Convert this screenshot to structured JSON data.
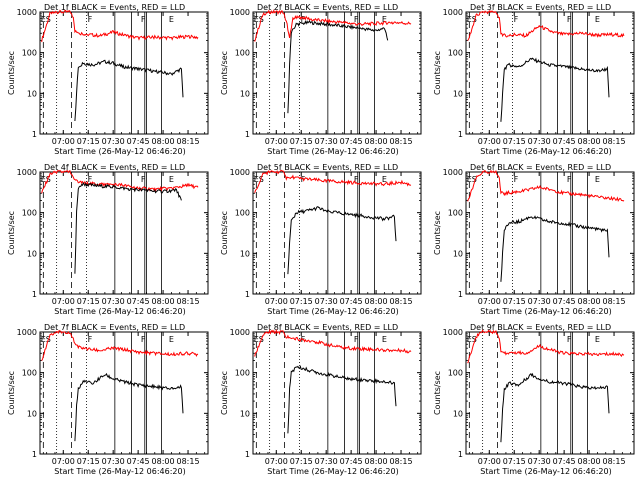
{
  "shared": {
    "ylabel": "Counts/sec",
    "xlabel": "Start Time (26-May-12 06:46:20)",
    "x_ticks": [
      "07:00",
      "07:15",
      "07:30",
      "07:45",
      "08:00",
      "08:15"
    ],
    "y_ticks": [
      "1",
      "10",
      "100",
      "1000"
    ],
    "colors": {
      "events": "#000000",
      "lld": "#ff0000",
      "axes": "#000000"
    }
  },
  "chart_data": [
    {
      "type": "line",
      "title": "Det 1f BLACK = Events, RED = LLD",
      "xlabel": "Start Time (26-May-12 06:46:20)",
      "ylabel": "Counts/sec",
      "x_ticks": [
        "07:00",
        "07:15",
        "07:30",
        "07:45",
        "08:00",
        "08:15"
      ],
      "y_scale": "log",
      "ylim": [
        1,
        1000
      ],
      "marker_letters": [
        "E",
        "S",
        "F",
        "F",
        "E"
      ],
      "series": [
        {
          "color": "#ff0000",
          "x": [
            "06:47",
            "06:52",
            "06:56",
            "07:04",
            "07:06",
            "07:07",
            "07:10",
            "07:15",
            "07:22",
            "07:30",
            "07:38",
            "07:45",
            "07:55",
            "08:05",
            "08:15",
            "08:21"
          ],
          "y": [
            200,
            900,
            1000,
            1000,
            700,
            350,
            300,
            280,
            260,
            320,
            260,
            230,
            240,
            230,
            250,
            240
          ]
        },
        {
          "color": "#000000",
          "x": [
            "07:07",
            "07:08",
            "07:09",
            "07:12",
            "07:18",
            "07:25",
            "07:30",
            "07:36",
            "07:45",
            "07:55",
            "08:05",
            "08:11",
            "08:12"
          ],
          "y": [
            2,
            10,
            45,
            55,
            50,
            60,
            55,
            45,
            40,
            35,
            30,
            40,
            8
          ]
        }
      ]
    },
    {
      "type": "line",
      "title": "Det 2f BLACK = Events, RED = LLD",
      "xlabel": "Start Time (26-May-12 06:46:20)",
      "ylabel": "Counts/sec",
      "x_ticks": [
        "07:00",
        "07:15",
        "07:30",
        "07:45",
        "08:00",
        "08:15"
      ],
      "y_scale": "log",
      "ylim": [
        1,
        1000
      ],
      "marker_letters": [
        "E",
        "S",
        "F",
        "F",
        "E"
      ],
      "series": [
        {
          "color": "#ff0000",
          "x": [
            "06:47",
            "06:52",
            "06:56",
            "07:04",
            "07:06",
            "07:08",
            "07:10",
            "07:15",
            "07:22",
            "07:30",
            "07:40",
            "07:50",
            "08:00",
            "08:10",
            "08:21"
          ],
          "y": [
            200,
            900,
            1000,
            1000,
            600,
            250,
            700,
            750,
            650,
            600,
            550,
            500,
            520,
            560,
            520
          ]
        },
        {
          "color": "#000000",
          "x": [
            "07:07",
            "07:08",
            "07:09",
            "07:12",
            "07:20",
            "07:30",
            "07:40",
            "07:50",
            "08:00",
            "08:05",
            "08:07"
          ],
          "y": [
            3,
            50,
            300,
            500,
            550,
            500,
            450,
            400,
            350,
            400,
            200
          ]
        }
      ]
    },
    {
      "type": "line",
      "title": "Det 3f BLACK = Events, RED = LLD",
      "xlabel": "Start Time (26-May-12 06:46:20)",
      "ylabel": "Counts/sec",
      "x_ticks": [
        "07:00",
        "07:15",
        "07:30",
        "07:45",
        "08:00",
        "08:15"
      ],
      "y_scale": "log",
      "ylim": [
        1,
        1000
      ],
      "marker_letters": [
        "E",
        "S",
        "F",
        "F",
        "E"
      ],
      "series": [
        {
          "color": "#ff0000",
          "x": [
            "06:47",
            "06:52",
            "06:56",
            "07:04",
            "07:06",
            "07:07",
            "07:10",
            "07:15",
            "07:22",
            "07:30",
            "07:38",
            "07:45",
            "07:55",
            "08:05",
            "08:15",
            "08:21"
          ],
          "y": [
            180,
            800,
            1000,
            1000,
            700,
            300,
            250,
            280,
            260,
            450,
            320,
            280,
            300,
            270,
            280,
            260
          ]
        },
        {
          "color": "#000000",
          "x": [
            "07:07",
            "07:08",
            "07:09",
            "07:12",
            "07:18",
            "07:25",
            "07:30",
            "07:36",
            "07:45",
            "07:55",
            "08:05",
            "08:11",
            "08:12"
          ],
          "y": [
            2,
            10,
            40,
            50,
            45,
            70,
            60,
            50,
            45,
            40,
            35,
            40,
            8
          ]
        }
      ]
    },
    {
      "type": "line",
      "title": "Det 4f BLACK = Events, RED = LLD",
      "xlabel": "Start Time (26-May-12 06:46:20)",
      "ylabel": "Counts/sec",
      "x_ticks": [
        "07:00",
        "07:15",
        "07:30",
        "07:45",
        "08:00",
        "08:15"
      ],
      "y_scale": "log",
      "ylim": [
        1,
        1000
      ],
      "marker_letters": [
        "E",
        "S",
        "F",
        "F",
        "E"
      ],
      "series": [
        {
          "color": "#ff0000",
          "x": [
            "06:47",
            "06:52",
            "06:56",
            "07:04",
            "07:06",
            "07:08",
            "07:10",
            "07:15",
            "07:25",
            "07:35",
            "07:45",
            "07:55",
            "08:05",
            "08:15",
            "08:21"
          ],
          "y": [
            300,
            900,
            1000,
            1000,
            700,
            600,
            550,
            520,
            500,
            480,
            400,
            380,
            400,
            470,
            420
          ]
        },
        {
          "color": "#000000",
          "x": [
            "07:07",
            "07:08",
            "07:09",
            "07:12",
            "07:20",
            "07:30",
            "07:40",
            "07:50",
            "08:00",
            "08:08",
            "08:11"
          ],
          "y": [
            3,
            100,
            400,
            500,
            460,
            430,
            380,
            350,
            330,
            360,
            200
          ]
        }
      ]
    },
    {
      "type": "line",
      "title": "Det 5f BLACK = Events, RED = LLD",
      "xlabel": "Start Time (26-May-12 06:46:20)",
      "ylabel": "Counts/sec",
      "x_ticks": [
        "07:00",
        "07:15",
        "07:30",
        "07:45",
        "08:00",
        "08:15"
      ],
      "y_scale": "log",
      "ylim": [
        1,
        1000
      ],
      "marker_letters": [
        "E",
        "S",
        "F",
        "F",
        "E"
      ],
      "series": [
        {
          "color": "#ff0000",
          "x": [
            "06:47",
            "06:52",
            "06:56",
            "07:04",
            "07:06",
            "07:07",
            "07:10",
            "07:15",
            "07:22",
            "07:30",
            "07:38",
            "07:45",
            "07:55",
            "08:05",
            "08:15",
            "08:21"
          ],
          "y": [
            300,
            900,
            1000,
            1000,
            700,
            700,
            750,
            680,
            650,
            600,
            580,
            550,
            520,
            500,
            560,
            480
          ]
        },
        {
          "color": "#000000",
          "x": [
            "07:07",
            "07:08",
            "07:09",
            "07:12",
            "07:18",
            "07:25",
            "07:30",
            "07:36",
            "07:45",
            "07:55",
            "08:05",
            "08:11",
            "08:12"
          ],
          "y": [
            3,
            20,
            60,
            100,
            110,
            130,
            110,
            100,
            90,
            80,
            70,
            80,
            20
          ]
        }
      ]
    },
    {
      "type": "line",
      "title": "Det 6f BLACK = Events, RED = LLD",
      "xlabel": "Start Time (26-May-12 06:46:20)",
      "ylabel": "Counts/sec",
      "x_ticks": [
        "07:00",
        "07:15",
        "07:30",
        "07:45",
        "08:00",
        "08:15"
      ],
      "y_scale": "log",
      "ylim": [
        1,
        1000
      ],
      "marker_letters": [
        "E",
        "S",
        "F",
        "F",
        "E"
      ],
      "series": [
        {
          "color": "#ff0000",
          "x": [
            "06:47",
            "06:52",
            "06:56",
            "07:04",
            "07:06",
            "07:07",
            "07:10",
            "07:15",
            "07:22",
            "07:30",
            "07:38",
            "07:45",
            "07:55",
            "08:05",
            "08:15",
            "08:21"
          ],
          "y": [
            180,
            700,
            1000,
            1000,
            700,
            300,
            300,
            320,
            350,
            420,
            360,
            300,
            280,
            240,
            220,
            200
          ]
        },
        {
          "color": "#000000",
          "x": [
            "07:07",
            "07:08",
            "07:09",
            "07:12",
            "07:18",
            "07:25",
            "07:30",
            "07:36",
            "07:45",
            "07:55",
            "08:05",
            "08:11",
            "08:12"
          ],
          "y": [
            2,
            10,
            40,
            55,
            60,
            80,
            70,
            60,
            55,
            45,
            40,
            35,
            8
          ]
        }
      ]
    },
    {
      "type": "line",
      "title": "Det 7f BLACK = Events, RED = LLD",
      "xlabel": "Start Time (26-May-12 06:46:20)",
      "ylabel": "Counts/sec",
      "x_ticks": [
        "07:00",
        "07:15",
        "07:30",
        "07:45",
        "08:00",
        "08:15"
      ],
      "y_scale": "log",
      "ylim": [
        1,
        1000
      ],
      "marker_letters": [
        "E",
        "S",
        "F",
        "F",
        "E"
      ],
      "series": [
        {
          "color": "#ff0000",
          "x": [
            "06:47",
            "06:52",
            "06:56",
            "07:04",
            "07:06",
            "07:07",
            "07:10",
            "07:15",
            "07:22",
            "07:30",
            "07:38",
            "07:45",
            "07:55",
            "08:05",
            "08:15",
            "08:21"
          ],
          "y": [
            200,
            800,
            1000,
            1000,
            700,
            500,
            420,
            380,
            350,
            400,
            360,
            320,
            300,
            280,
            300,
            280
          ]
        },
        {
          "color": "#000000",
          "x": [
            "07:07",
            "07:08",
            "07:09",
            "07:12",
            "07:18",
            "07:25",
            "07:30",
            "07:36",
            "07:45",
            "07:55",
            "08:05",
            "08:11",
            "08:12"
          ],
          "y": [
            2,
            15,
            40,
            60,
            55,
            90,
            70,
            60,
            50,
            45,
            40,
            45,
            10
          ]
        }
      ]
    },
    {
      "type": "line",
      "title": "Det 8f BLACK = Events, RED = LLD",
      "xlabel": "Start Time (26-May-12 06:46:20)",
      "ylabel": "Counts/sec",
      "x_ticks": [
        "07:00",
        "07:15",
        "07:30",
        "07:45",
        "08:00",
        "08:15"
      ],
      "y_scale": "log",
      "ylim": [
        1,
        1000
      ],
      "marker_letters": [
        "E",
        "S",
        "F",
        "F",
        "E"
      ],
      "series": [
        {
          "color": "#ff0000",
          "x": [
            "06:47",
            "06:52",
            "06:56",
            "07:04",
            "07:06",
            "07:07",
            "07:10",
            "07:15",
            "07:22",
            "07:30",
            "07:38",
            "07:45",
            "07:55",
            "08:05",
            "08:15",
            "08:21"
          ],
          "y": [
            250,
            850,
            1000,
            1000,
            700,
            750,
            700,
            650,
            600,
            500,
            420,
            400,
            380,
            360,
            350,
            330
          ]
        },
        {
          "color": "#000000",
          "x": [
            "07:07",
            "07:08",
            "07:09",
            "07:12",
            "07:18",
            "07:25",
            "07:30",
            "07:36",
            "07:45",
            "07:55",
            "08:05",
            "08:11",
            "08:12"
          ],
          "y": [
            3,
            40,
            100,
            140,
            120,
            100,
            90,
            80,
            70,
            65,
            60,
            55,
            15
          ]
        }
      ]
    },
    {
      "type": "line",
      "title": "Det 9f BLACK = Events, RED = LLD",
      "xlabel": "Start Time (26-May-12 06:46:20)",
      "ylabel": "Counts/sec",
      "x_ticks": [
        "07:00",
        "07:15",
        "07:30",
        "07:45",
        "08:00",
        "08:15"
      ],
      "y_scale": "log",
      "ylim": [
        1,
        1000
      ],
      "marker_letters": [
        "E",
        "S",
        "F",
        "F",
        "E"
      ],
      "series": [
        {
          "color": "#ff0000",
          "x": [
            "06:47",
            "06:52",
            "06:56",
            "07:04",
            "07:06",
            "07:07",
            "07:10",
            "07:15",
            "07:22",
            "07:30",
            "07:38",
            "07:45",
            "07:55",
            "08:05",
            "08:15",
            "08:21"
          ],
          "y": [
            180,
            750,
            1000,
            1000,
            700,
            350,
            300,
            320,
            300,
            450,
            350,
            300,
            290,
            280,
            290,
            270
          ]
        },
        {
          "color": "#000000",
          "x": [
            "07:07",
            "07:08",
            "07:09",
            "07:12",
            "07:18",
            "07:25",
            "07:30",
            "07:36",
            "07:45",
            "07:55",
            "08:05",
            "08:11",
            "08:12"
          ],
          "y": [
            2,
            12,
            40,
            55,
            50,
            90,
            70,
            60,
            55,
            45,
            40,
            45,
            10
          ]
        }
      ]
    }
  ]
}
